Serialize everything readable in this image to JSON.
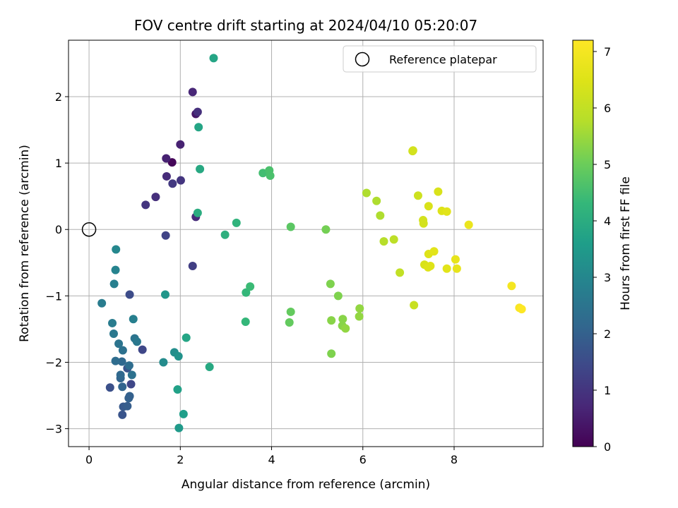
{
  "chart_data": {
    "type": "scatter",
    "title": "FOV centre drift starting at 2024/04/10 05:20:07",
    "xlabel": "Angular distance from reference (arcmin)",
    "ylabel": "Rotation from reference (arcmin)",
    "xlim": [
      -0.45,
      9.95
    ],
    "ylim": [
      -3.27,
      2.85
    ],
    "xticks": [
      0,
      2,
      4,
      6,
      8
    ],
    "yticks": [
      -3,
      -2,
      -1,
      0,
      1,
      2
    ],
    "grid": true,
    "legend": {
      "placement": "top-right",
      "entries": [
        "Reference platepar"
      ]
    },
    "reference_point": {
      "x": 0,
      "y": 0
    },
    "colorbar": {
      "label": "Hours from first FF file",
      "colormap": "viridis",
      "range": [
        0,
        7.2
      ],
      "ticks": [
        0,
        1,
        2,
        3,
        4,
        5,
        6,
        7
      ]
    },
    "points": [
      {
        "x": 1.82,
        "y": 1.01,
        "c": 0.1
      },
      {
        "x": 1.69,
        "y": 1.07,
        "c": 0.6
      },
      {
        "x": 1.7,
        "y": 0.8,
        "c": 0.8
      },
      {
        "x": 1.46,
        "y": 0.49,
        "c": 0.9
      },
      {
        "x": 1.24,
        "y": 0.37,
        "c": 1.0
      },
      {
        "x": 2.01,
        "y": 0.74,
        "c": 1.0
      },
      {
        "x": 1.83,
        "y": 0.69,
        "c": 1.1
      },
      {
        "x": 2.0,
        "y": 1.28,
        "c": 0.6
      },
      {
        "x": 2.27,
        "y": 2.07,
        "c": 0.7
      },
      {
        "x": 2.34,
        "y": 1.74,
        "c": 0.4
      },
      {
        "x": 2.38,
        "y": 1.77,
        "c": 0.9
      },
      {
        "x": 2.34,
        "y": 0.19,
        "c": 0.8
      },
      {
        "x": 2.27,
        "y": -0.55,
        "c": 1.2
      },
      {
        "x": 1.68,
        "y": -0.09,
        "c": 1.3
      },
      {
        "x": 1.17,
        "y": -1.81,
        "c": 1.4
      },
      {
        "x": 0.92,
        "y": -2.33,
        "c": 1.4
      },
      {
        "x": 0.89,
        "y": -0.98,
        "c": 1.5
      },
      {
        "x": 0.46,
        "y": -2.38,
        "c": 1.6
      },
      {
        "x": 0.84,
        "y": -2.09,
        "c": 1.7
      },
      {
        "x": 0.73,
        "y": -2.79,
        "c": 1.7
      },
      {
        "x": 0.75,
        "y": -2.67,
        "c": 1.8
      },
      {
        "x": 0.84,
        "y": -2.66,
        "c": 1.9
      },
      {
        "x": 0.87,
        "y": -2.54,
        "c": 2.0
      },
      {
        "x": 0.89,
        "y": -2.51,
        "c": 2.0
      },
      {
        "x": 0.73,
        "y": -2.37,
        "c": 2.1
      },
      {
        "x": 0.69,
        "y": -2.24,
        "c": 2.1
      },
      {
        "x": 0.69,
        "y": -2.19,
        "c": 2.2
      },
      {
        "x": 0.72,
        "y": -1.99,
        "c": 2.2
      },
      {
        "x": 0.58,
        "y": -1.98,
        "c": 2.3
      },
      {
        "x": 0.88,
        "y": -2.05,
        "c": 2.3
      },
      {
        "x": 0.94,
        "y": -2.19,
        "c": 2.4
      },
      {
        "x": 0.74,
        "y": -1.82,
        "c": 2.4
      },
      {
        "x": 0.65,
        "y": -1.72,
        "c": 2.5
      },
      {
        "x": 1.0,
        "y": -1.64,
        "c": 2.5
      },
      {
        "x": 1.05,
        "y": -1.69,
        "c": 2.6
      },
      {
        "x": 0.54,
        "y": -1.57,
        "c": 2.6
      },
      {
        "x": 0.51,
        "y": -1.41,
        "c": 2.7
      },
      {
        "x": 0.28,
        "y": -1.11,
        "c": 2.7
      },
      {
        "x": 0.97,
        "y": -1.35,
        "c": 2.8
      },
      {
        "x": 0.55,
        "y": -0.82,
        "c": 2.8
      },
      {
        "x": 0.58,
        "y": -0.61,
        "c": 2.9
      },
      {
        "x": 0.59,
        "y": -0.3,
        "c": 3.0
      },
      {
        "x": 1.63,
        "y": -2.0,
        "c": 3.1
      },
      {
        "x": 1.87,
        "y": -1.85,
        "c": 3.2
      },
      {
        "x": 1.96,
        "y": -1.91,
        "c": 3.3
      },
      {
        "x": 1.67,
        "y": -0.98,
        "c": 3.4
      },
      {
        "x": 1.97,
        "y": -2.99,
        "c": 3.5
      },
      {
        "x": 2.07,
        "y": -2.78,
        "c": 3.6
      },
      {
        "x": 1.94,
        "y": -2.41,
        "c": 3.7
      },
      {
        "x": 2.13,
        "y": -1.63,
        "c": 3.8
      },
      {
        "x": 2.64,
        "y": -2.07,
        "c": 3.9
      },
      {
        "x": 2.73,
        "y": 2.58,
        "c": 3.8
      },
      {
        "x": 2.4,
        "y": 1.54,
        "c": 3.8
      },
      {
        "x": 2.43,
        "y": 0.91,
        "c": 3.9
      },
      {
        "x": 2.38,
        "y": 0.25,
        "c": 4.0
      },
      {
        "x": 2.98,
        "y": -0.08,
        "c": 4.1
      },
      {
        "x": 3.23,
        "y": 0.1,
        "c": 4.2
      },
      {
        "x": 3.44,
        "y": -0.95,
        "c": 4.3
      },
      {
        "x": 3.53,
        "y": -0.86,
        "c": 4.4
      },
      {
        "x": 3.43,
        "y": -1.39,
        "c": 4.3
      },
      {
        "x": 3.81,
        "y": 0.85,
        "c": 4.5
      },
      {
        "x": 3.95,
        "y": 0.89,
        "c": 4.6
      },
      {
        "x": 3.97,
        "y": 0.81,
        "c": 4.6
      },
      {
        "x": 4.42,
        "y": 0.04,
        "c": 4.8
      },
      {
        "x": 4.42,
        "y": -1.24,
        "c": 4.9
      },
      {
        "x": 4.39,
        "y": -1.4,
        "c": 4.9
      },
      {
        "x": 5.19,
        "y": 0.0,
        "c": 5.1
      },
      {
        "x": 5.29,
        "y": -0.82,
        "c": 5.2
      },
      {
        "x": 5.46,
        "y": -1.0,
        "c": 5.2
      },
      {
        "x": 5.31,
        "y": -1.37,
        "c": 5.3
      },
      {
        "x": 5.31,
        "y": -1.87,
        "c": 5.2
      },
      {
        "x": 5.56,
        "y": -1.35,
        "c": 5.3
      },
      {
        "x": 5.55,
        "y": -1.45,
        "c": 5.3
      },
      {
        "x": 5.62,
        "y": -1.49,
        "c": 5.4
      },
      {
        "x": 5.93,
        "y": -1.19,
        "c": 5.4
      },
      {
        "x": 5.92,
        "y": -1.31,
        "c": 5.4
      },
      {
        "x": 6.08,
        "y": 0.55,
        "c": 5.7
      },
      {
        "x": 6.3,
        "y": 0.43,
        "c": 5.7
      },
      {
        "x": 6.38,
        "y": 0.21,
        "c": 5.7
      },
      {
        "x": 6.46,
        "y": -0.18,
        "c": 5.8
      },
      {
        "x": 6.68,
        "y": -0.15,
        "c": 5.9
      },
      {
        "x": 6.81,
        "y": -0.65,
        "c": 6.0
      },
      {
        "x": 7.12,
        "y": -1.14,
        "c": 6.1
      },
      {
        "x": 7.09,
        "y": 1.18,
        "c": 6.2
      },
      {
        "x": 7.1,
        "y": 1.19,
        "c": 6.3
      },
      {
        "x": 7.21,
        "y": 0.51,
        "c": 6.2
      },
      {
        "x": 7.32,
        "y": 0.14,
        "c": 6.3
      },
      {
        "x": 7.33,
        "y": 0.09,
        "c": 6.3
      },
      {
        "x": 7.44,
        "y": 0.35,
        "c": 6.4
      },
      {
        "x": 7.65,
        "y": 0.57,
        "c": 6.4
      },
      {
        "x": 7.73,
        "y": 0.28,
        "c": 6.5
      },
      {
        "x": 7.84,
        "y": 0.27,
        "c": 6.6
      },
      {
        "x": 7.35,
        "y": -0.53,
        "c": 6.4
      },
      {
        "x": 7.43,
        "y": -0.57,
        "c": 6.5
      },
      {
        "x": 7.48,
        "y": -0.55,
        "c": 6.5
      },
      {
        "x": 7.44,
        "y": -0.37,
        "c": 6.5
      },
      {
        "x": 7.56,
        "y": -0.33,
        "c": 6.6
      },
      {
        "x": 7.84,
        "y": -0.59,
        "c": 6.6
      },
      {
        "x": 8.03,
        "y": -0.45,
        "c": 6.7
      },
      {
        "x": 8.06,
        "y": -0.59,
        "c": 6.7
      },
      {
        "x": 8.32,
        "y": 0.07,
        "c": 6.8
      },
      {
        "x": 9.26,
        "y": -0.85,
        "c": 7.0
      },
      {
        "x": 9.43,
        "y": -1.18,
        "c": 7.1
      },
      {
        "x": 9.48,
        "y": -1.2,
        "c": 7.2
      }
    ]
  }
}
